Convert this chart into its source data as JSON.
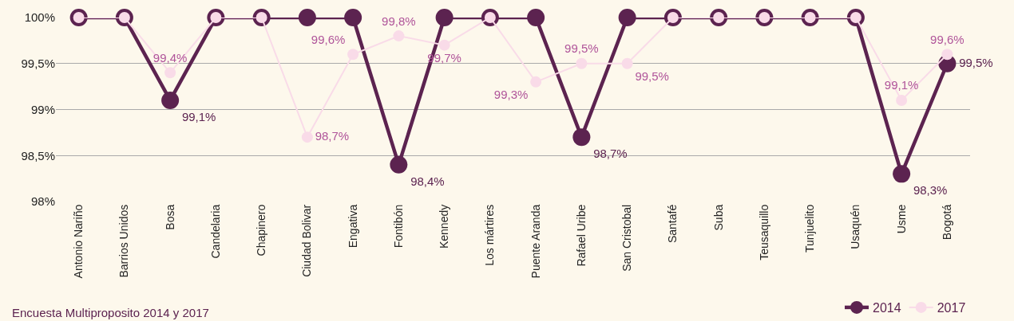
{
  "chart_data": {
    "type": "line",
    "categories": [
      "Antonio Nariño",
      "Barrios Unidos",
      "Bosa",
      "Candelaria",
      "Chapinero",
      "Ciudad Bolivar",
      "Engativa",
      "Fontibón",
      "Kennedy",
      "Los mártires",
      "Puente Aranda",
      "Rafael Uribe",
      "San Cristobal",
      "Santafé",
      "Suba",
      "Teusaquillo",
      "Tunjuelito",
      "Usaquén",
      "Usme",
      "Bogotá"
    ],
    "series": [
      {
        "name": "2014",
        "color": "#5c2350",
        "values": [
          100,
          100,
          99.1,
          100,
          100,
          100,
          100,
          98.4,
          100,
          100,
          100,
          98.7,
          100,
          100,
          100,
          100,
          100,
          100,
          98.3,
          99.5
        ],
        "value_labels": [
          null,
          null,
          "99,1%",
          null,
          null,
          null,
          null,
          "98,4%",
          null,
          null,
          null,
          "98,7%",
          null,
          null,
          null,
          null,
          null,
          null,
          "98,3%",
          "99,5%"
        ]
      },
      {
        "name": "2017",
        "color": "#f9dbe8",
        "values": [
          100,
          100,
          99.4,
          100,
          100,
          98.7,
          99.6,
          99.8,
          99.7,
          100,
          99.3,
          99.5,
          99.5,
          100,
          100,
          100,
          100,
          100,
          99.1,
          99.6
        ],
        "value_labels": [
          null,
          null,
          "99,4%",
          null,
          null,
          "98,7%",
          "99,6%",
          "99,8%",
          "99,7%",
          null,
          "99,3%",
          "99,5%",
          "99,5%",
          null,
          null,
          null,
          null,
          null,
          "99,1%",
          "99,6%"
        ]
      }
    ],
    "ylim": [
      98,
      100
    ],
    "yticks": [
      {
        "value": 98,
        "label": "98%"
      },
      {
        "value": 98.5,
        "label": "98,5%"
      },
      {
        "value": 99,
        "label": "99%"
      },
      {
        "value": 99.5,
        "label": "99,5%"
      },
      {
        "value": 100,
        "label": "100%"
      }
    ],
    "grid": "y",
    "legend": "bottom right",
    "marker": "circle",
    "line_style": "solid",
    "annotations": [
      "Encuesta Multiproposito 2014 y 2017"
    ]
  }
}
